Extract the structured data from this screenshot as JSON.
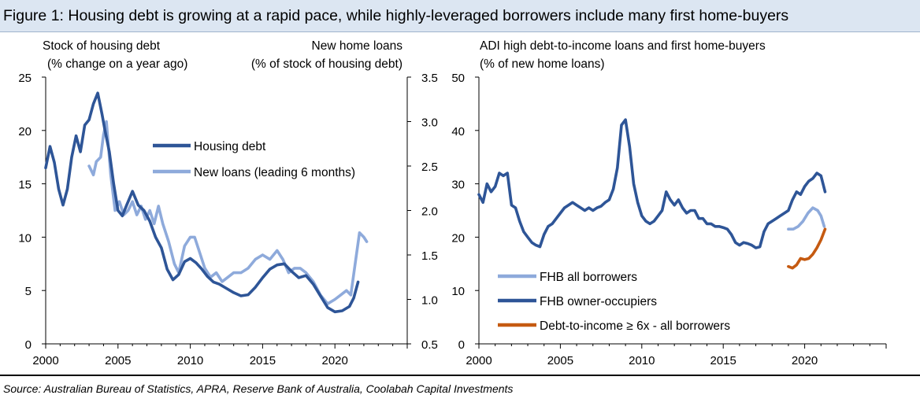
{
  "figure": {
    "title": "Figure 1: Housing debt is growing at a rapid pace, while highly-leveraged borrowers include many first home-buyers",
    "source": "Source: Australian Bureau of Statistics, APRA, Reserve Bank of Australia, Coolabah Capital Investments"
  },
  "colors": {
    "dark_blue": "#2e5597",
    "light_blue": "#8eaadb",
    "orange": "#c55a11"
  },
  "chart_data": [
    {
      "type": "line",
      "left_axis_title": [
        "Stock of housing debt",
        "(% change on a year ago)"
      ],
      "right_axis_title": [
        "New home loans",
        "(% of stock of housing debt)"
      ],
      "x_ticks": [
        "2000",
        "2005",
        "2010",
        "2015",
        "2020"
      ],
      "xlim": [
        2000,
        2025
      ],
      "ylim": [
        0,
        25
      ],
      "y_ticks": [
        "0",
        "5",
        "10",
        "15",
        "20",
        "25"
      ],
      "y2lim": [
        0.5,
        3.5
      ],
      "y2_ticks": [
        "0.5",
        "1.0",
        "1.5",
        "2.0",
        "2.5",
        "3.0",
        "3.5"
      ],
      "series": [
        {
          "name": "Housing debt",
          "axis": "left",
          "color": "#2e5597",
          "x": [
            2000,
            2000.3,
            2000.6,
            2000.9,
            2001.2,
            2001.5,
            2001.8,
            2002.1,
            2002.4,
            2002.7,
            2003.0,
            2003.3,
            2003.6,
            2003.9,
            2004.1,
            2004.4,
            2004.7,
            2005.0,
            2005.3,
            2005.6,
            2006.0,
            2006.4,
            2006.8,
            2007.2,
            2007.6,
            2008.0,
            2008.4,
            2008.8,
            2009.2,
            2009.6,
            2010.0,
            2010.4,
            2010.8,
            2011.2,
            2011.6,
            2012.0,
            2012.5,
            2013.0,
            2013.5,
            2014.0,
            2014.5,
            2015.0,
            2015.5,
            2016.0,
            2016.5,
            2017.0,
            2017.5,
            2018.0,
            2018.5,
            2019.0,
            2019.5,
            2020.0,
            2020.5,
            2021.0,
            2021.3,
            2021.6
          ],
          "y": [
            16.5,
            18.5,
            17.0,
            14.5,
            13.0,
            14.5,
            17.5,
            19.5,
            18.0,
            20.5,
            21.0,
            22.5,
            23.5,
            21.5,
            20.0,
            18.0,
            15.0,
            12.5,
            12.0,
            13.0,
            14.3,
            13.0,
            12.5,
            11.5,
            10.0,
            9.0,
            7.0,
            6.0,
            6.5,
            7.7,
            8.0,
            7.6,
            7.0,
            6.3,
            5.8,
            5.6,
            5.2,
            4.8,
            4.5,
            4.6,
            5.3,
            6.2,
            7.0,
            7.4,
            7.5,
            6.8,
            6.2,
            6.4,
            5.6,
            4.5,
            3.4,
            3.0,
            3.1,
            3.5,
            4.3,
            5.8
          ]
        },
        {
          "name": "New loans (leading 6 months)",
          "axis": "right",
          "color": "#8eaadb",
          "x": [
            2003.0,
            2003.3,
            2003.5,
            2003.8,
            2004.0,
            2004.2,
            2004.5,
            2004.8,
            2005.1,
            2005.4,
            2005.7,
            2006.0,
            2006.3,
            2006.6,
            2006.9,
            2007.2,
            2007.5,
            2007.8,
            2008.1,
            2008.5,
            2008.9,
            2009.2,
            2009.6,
            2010.0,
            2010.3,
            2010.7,
            2011.0,
            2011.4,
            2011.8,
            2012.2,
            2012.6,
            2013.0,
            2013.5,
            2014.0,
            2014.5,
            2015.0,
            2015.5,
            2016.0,
            2016.4,
            2016.8,
            2017.2,
            2017.6,
            2018.0,
            2018.5,
            2019.0,
            2019.5,
            2020.0,
            2020.4,
            2020.8,
            2021.1,
            2021.4,
            2021.7,
            2022.0,
            2022.2
          ],
          "y": [
            2.5,
            2.4,
            2.55,
            2.6,
            2.85,
            3.0,
            2.4,
            2.0,
            2.1,
            1.95,
            2.0,
            2.1,
            1.95,
            2.05,
            1.9,
            2.0,
            1.85,
            2.05,
            1.85,
            1.65,
            1.4,
            1.3,
            1.6,
            1.7,
            1.7,
            1.5,
            1.35,
            1.25,
            1.3,
            1.2,
            1.25,
            1.3,
            1.3,
            1.35,
            1.45,
            1.5,
            1.45,
            1.55,
            1.45,
            1.3,
            1.35,
            1.35,
            1.3,
            1.2,
            1.05,
            0.95,
            1.0,
            1.05,
            1.1,
            1.05,
            1.4,
            1.75,
            1.7,
            1.65
          ]
        }
      ],
      "legend_position": "upper-middle"
    },
    {
      "type": "line",
      "axis_title": [
        "ADI high debt-to-income loans and first home-buyers",
        "(% of new home loans)"
      ],
      "x_ticks": [
        "2000",
        "2005",
        "2010",
        "2015",
        "2020"
      ],
      "xlim": [
        2000,
        2025
      ],
      "ylim": [
        0,
        50
      ],
      "y_ticks": [
        "0",
        "10",
        "20",
        "30",
        "40",
        "50"
      ],
      "series": [
        {
          "name": "FHB all borrowers",
          "color": "#8eaadb",
          "x": [
            2019.0,
            2019.3,
            2019.6,
            2019.9,
            2020.2,
            2020.5,
            2020.8,
            2021.0,
            2021.2
          ],
          "y": [
            21.5,
            21.5,
            22.0,
            23.0,
            24.5,
            25.5,
            25.0,
            24.0,
            22.0
          ]
        },
        {
          "name": "FHB owner-occupiers",
          "color": "#2e5597",
          "x": [
            2000,
            2000.25,
            2000.5,
            2000.75,
            2001,
            2001.25,
            2001.5,
            2001.75,
            2002,
            2002.25,
            2002.5,
            2002.75,
            2003,
            2003.25,
            2003.5,
            2003.75,
            2004,
            2004.25,
            2004.5,
            2004.75,
            2005,
            2005.25,
            2005.5,
            2005.75,
            2006,
            2006.25,
            2006.5,
            2006.75,
            2007,
            2007.25,
            2007.5,
            2007.75,
            2008,
            2008.25,
            2008.5,
            2008.75,
            2009,
            2009.25,
            2009.5,
            2009.75,
            2010,
            2010.25,
            2010.5,
            2010.75,
            2011,
            2011.25,
            2011.5,
            2011.75,
            2012,
            2012.25,
            2012.5,
            2012.75,
            2013,
            2013.25,
            2013.5,
            2013.75,
            2014,
            2014.25,
            2014.5,
            2014.75,
            2015,
            2015.25,
            2015.5,
            2015.75,
            2016,
            2016.25,
            2016.5,
            2016.75,
            2017,
            2017.25,
            2017.5,
            2017.75,
            2018,
            2018.25,
            2018.5,
            2018.75,
            2019,
            2019.25,
            2019.5,
            2019.75,
            2020,
            2020.25,
            2020.5,
            2020.75,
            2021,
            2021.25
          ],
          "y": [
            28,
            26.5,
            30,
            28.5,
            29.5,
            32,
            31.5,
            32,
            26,
            25.5,
            23,
            21,
            20,
            19,
            18.5,
            18.2,
            20.5,
            22,
            22.5,
            23.5,
            24.5,
            25.5,
            26,
            26.5,
            26,
            25.5,
            25,
            25.5,
            25,
            25.5,
            25.8,
            26.5,
            27,
            29,
            33,
            41,
            42,
            37,
            30,
            26.5,
            24,
            23,
            22.5,
            23,
            24,
            25,
            28.5,
            27,
            26,
            27,
            25.5,
            24.5,
            25,
            25,
            23.5,
            23.5,
            22.5,
            22.5,
            22,
            22,
            21.8,
            21.5,
            20.5,
            19,
            18.5,
            19,
            18.8,
            18.5,
            18,
            18.2,
            21,
            22.5,
            23,
            23.5,
            24,
            24.5,
            25,
            27,
            28.5,
            28,
            29.5,
            30.5,
            31,
            32,
            31.5,
            28.5
          ]
        },
        {
          "name": "Debt-to-income ≥ 6x - all borrowers",
          "color": "#c55a11",
          "x": [
            2019.0,
            2019.25,
            2019.5,
            2019.75,
            2020.0,
            2020.25,
            2020.5,
            2020.75,
            2021.0,
            2021.25
          ],
          "y": [
            14.5,
            14.2,
            14.8,
            16.0,
            15.8,
            16.0,
            16.8,
            18.0,
            19.5,
            21.5
          ]
        }
      ],
      "legend_position": "bottom-left"
    }
  ]
}
